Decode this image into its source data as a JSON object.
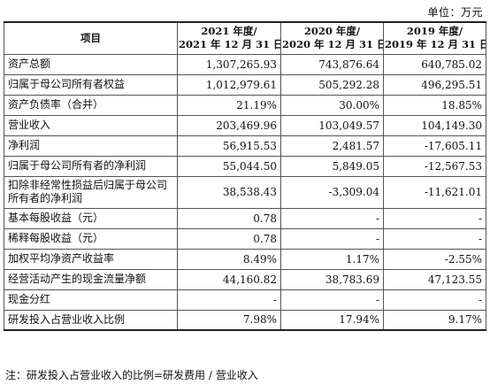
{
  "unit": "单位：万元",
  "header": {
    "item": "项目",
    "col2021": [
      "2021 年度/",
      "2021 年 12 月 31 日"
    ],
    "col2020": [
      "2020 年度/",
      "2020 年 12 月 31 日"
    ],
    "col2019": [
      "2019 年度/",
      "2019 年 12 月 31 日"
    ]
  },
  "rows": [
    {
      "label": "资产总额",
      "v2021": "1,307,265.93",
      "v2020": "743,876.64",
      "v2019": "640,785.02"
    },
    {
      "label": "归属于母公司所有者权益",
      "v2021": "1,012,979.61",
      "v2020": "505,292.28",
      "v2019": "496,295.51"
    },
    {
      "label": "资产负债率（合并）",
      "v2021": "21.19%",
      "v2020": "30.00%",
      "v2019": "18.85%"
    },
    {
      "label": "营业收入",
      "v2021": "203,469.96",
      "v2020": "103,049.57",
      "v2019": "104,149.30"
    },
    {
      "label": "净利润",
      "v2021": "56,915.53",
      "v2020": "2,481.57",
      "v2019": "-17,605.11"
    },
    {
      "label": "归属于母公司所有者的净利润",
      "v2021": "55,044.50",
      "v2020": "5,849.05",
      "v2019": "-12,567.53"
    },
    {
      "label": "扣除非经常性损益后归属于母公司所有者的净利润",
      "v2021": "38,538.43",
      "v2020": "-3,309.04",
      "v2019": "-11,621.01"
    },
    {
      "label": "基本每股收益（元）",
      "v2021": "0.78",
      "v2020": "-",
      "v2019": "-"
    },
    {
      "label": "稀释每股收益（元）",
      "v2021": "0.78",
      "v2020": "-",
      "v2019": "-"
    },
    {
      "label": "加权平均净资产收益率",
      "v2021": "8.49%",
      "v2020": "1.17%",
      "v2019": "-2.55%"
    },
    {
      "label": "经营活动产生的现金流量净额",
      "v2021": "44,160.82",
      "v2020": "38,783.69",
      "v2019": "47,123.55"
    },
    {
      "label": "现金分红",
      "v2021": "-",
      "v2020": "-",
      "v2019": "-"
    },
    {
      "label": "研发投入占营业收入比例",
      "v2021": "7.98%",
      "v2020": "17.94%",
      "v2019": "9.17%"
    }
  ],
  "note": "注：研发投入占营业收入的比例=研发费用 / 营业收入"
}
